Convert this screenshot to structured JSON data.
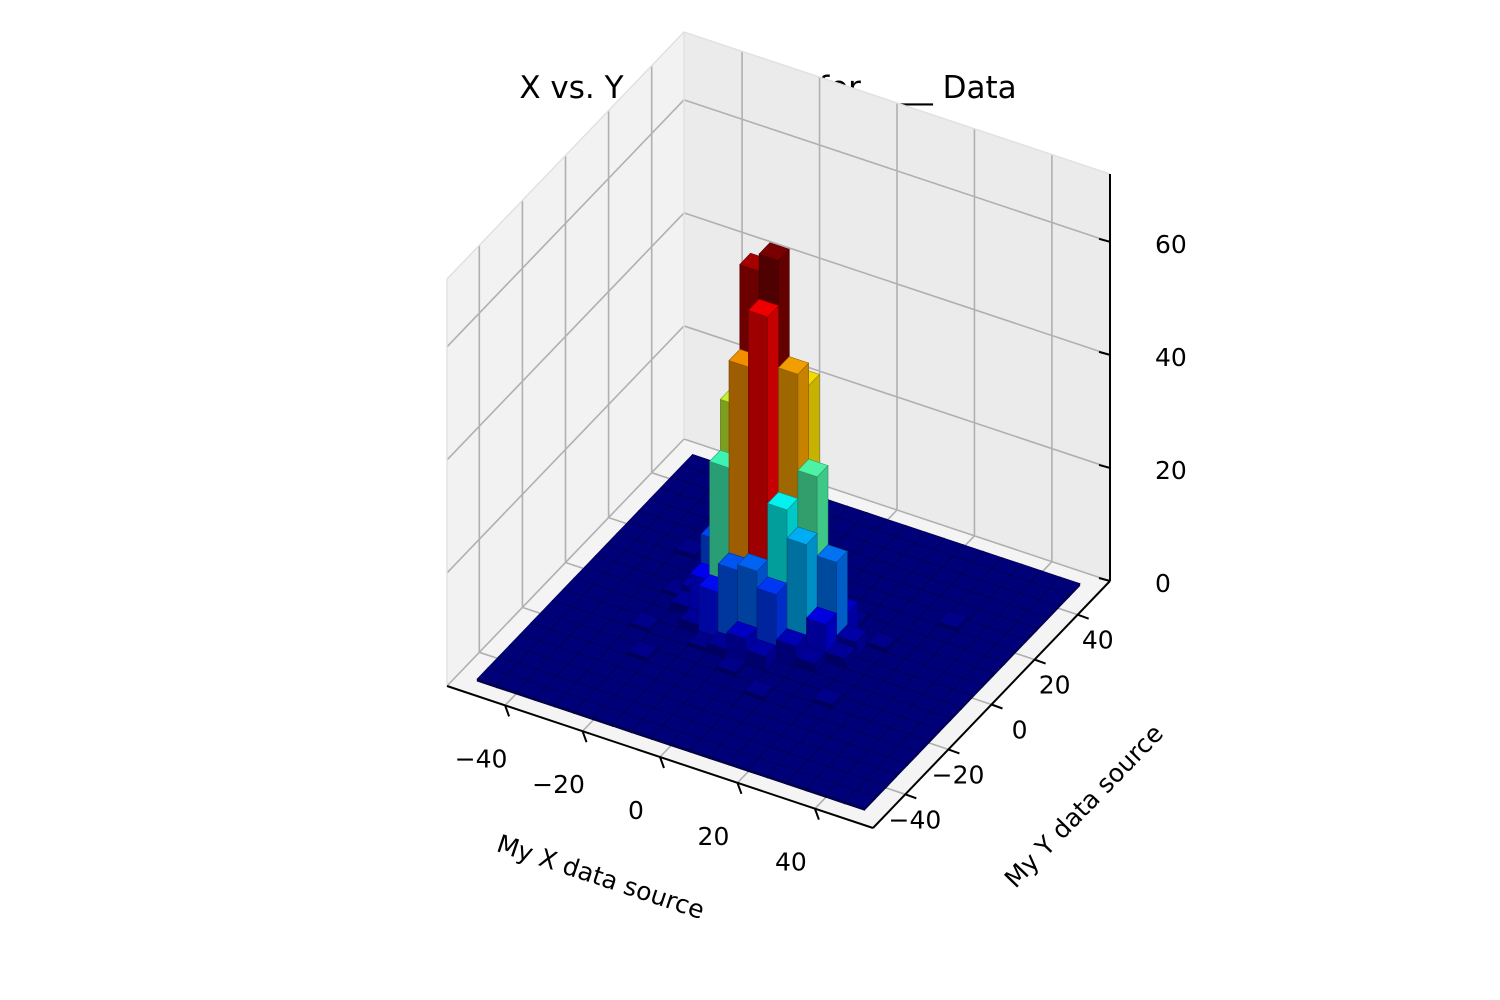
{
  "chart_data": {
    "type": "bar3d",
    "title": "X vs. Y Amplitudes for ____ Data",
    "xlabel": "My X data source",
    "ylabel": "My Y data source",
    "zlabel": "",
    "xlim": [
      -55,
      55
    ],
    "ylim": [
      -55,
      55
    ],
    "zlim": [
      0,
      72
    ],
    "x_ticks": [
      -40,
      -20,
      0,
      20,
      40
    ],
    "x_tick_labels": [
      "−40",
      "−20",
      "0",
      "20",
      "40"
    ],
    "y_ticks": [
      -40,
      -20,
      0,
      20,
      40
    ],
    "y_tick_labels": [
      "−40",
      "−20",
      "0",
      "20",
      "40"
    ],
    "z_ticks": [
      0,
      20,
      40,
      60
    ],
    "z_tick_labels": [
      "0",
      "20",
      "40",
      "60"
    ],
    "grid": true,
    "colormap": "jet",
    "bin_width": 5,
    "bins_x": [
      -50,
      50
    ],
    "bins_y": [
      -50,
      50
    ],
    "bars": [
      {
        "x": -2.5,
        "y": 2.5,
        "z": 66
      },
      {
        "x": -7.5,
        "y": 2.5,
        "z": 63
      },
      {
        "x": -2.5,
        "y": -2.5,
        "z": 58
      },
      {
        "x": -7.5,
        "y": -2.5,
        "z": 48
      },
      {
        "x": 2.5,
        "y": 2.5,
        "z": 47
      },
      {
        "x": 2.5,
        "y": 7.5,
        "z": 43
      },
      {
        "x": -12.5,
        "y": 2.5,
        "z": 38
      },
      {
        "x": -2.5,
        "y": 7.5,
        "z": 36
      },
      {
        "x": 7.5,
        "y": 2.5,
        "z": 30
      },
      {
        "x": -12.5,
        "y": -2.5,
        "z": 29
      },
      {
        "x": -7.5,
        "y": 7.5,
        "z": 27
      },
      {
        "x": 2.5,
        "y": -2.5,
        "z": 25
      },
      {
        "x": -12.5,
        "y": 7.5,
        "z": 22
      },
      {
        "x": 7.5,
        "y": -2.5,
        "z": 20
      },
      {
        "x": 12.5,
        "y": 2.5,
        "z": 16
      },
      {
        "x": -2.5,
        "y": -7.5,
        "z": 15
      },
      {
        "x": -7.5,
        "y": -7.5,
        "z": 14
      },
      {
        "x": -17.5,
        "y": 2.5,
        "z": 13
      },
      {
        "x": 2.5,
        "y": -7.5,
        "z": 12
      },
      {
        "x": -2.5,
        "y": 12.5,
        "z": 11
      },
      {
        "x": 7.5,
        "y": 7.5,
        "z": 10
      },
      {
        "x": -12.5,
        "y": -7.5,
        "z": 9
      },
      {
        "x": -17.5,
        "y": -2.5,
        "z": 8
      },
      {
        "x": 12.5,
        "y": -2.5,
        "z": 7
      },
      {
        "x": 2.5,
        "y": 12.5,
        "z": 7
      },
      {
        "x": -7.5,
        "y": 12.5,
        "z": 6
      },
      {
        "x": -17.5,
        "y": 7.5,
        "z": 5
      },
      {
        "x": 12.5,
        "y": 7.5,
        "z": 5
      },
      {
        "x": -2.5,
        "y": -12.5,
        "z": 5
      },
      {
        "x": 7.5,
        "y": -7.5,
        "z": 4
      },
      {
        "x": -22.5,
        "y": 2.5,
        "z": 3
      },
      {
        "x": 17.5,
        "y": 2.5,
        "z": 3
      },
      {
        "x": -12.5,
        "y": 12.5,
        "z": 3
      },
      {
        "x": 2.5,
        "y": -12.5,
        "z": 3
      },
      {
        "x": 7.5,
        "y": 12.5,
        "z": 2
      },
      {
        "x": -7.5,
        "y": -12.5,
        "z": 2
      },
      {
        "x": -22.5,
        "y": -2.5,
        "z": 2
      },
      {
        "x": 17.5,
        "y": -2.5,
        "z": 2
      },
      {
        "x": -17.5,
        "y": -7.5,
        "z": 2
      },
      {
        "x": 12.5,
        "y": -7.5,
        "z": 2
      },
      {
        "x": -2.5,
        "y": 17.5,
        "z": 2
      },
      {
        "x": 2.5,
        "y": 17.5,
        "z": 1
      },
      {
        "x": -12.5,
        "y": -12.5,
        "z": 1
      },
      {
        "x": 12.5,
        "y": 12.5,
        "z": 1
      },
      {
        "x": -2.5,
        "y": -17.5,
        "z": 1
      },
      {
        "x": -27.5,
        "y": 2.5,
        "z": 1
      },
      {
        "x": 22.5,
        "y": 7.5,
        "z": 1
      },
      {
        "x": 32.5,
        "y": 22.5,
        "z": 1
      },
      {
        "x": -32.5,
        "y": 17.5,
        "z": 1
      },
      {
        "x": -22.5,
        "y": -22.5,
        "z": 1
      },
      {
        "x": 22.5,
        "y": -17.5,
        "z": 1
      },
      {
        "x": 7.5,
        "y": -22.5,
        "z": 1
      },
      {
        "x": -27.5,
        "y": -12.5,
        "z": 1
      }
    ]
  }
}
